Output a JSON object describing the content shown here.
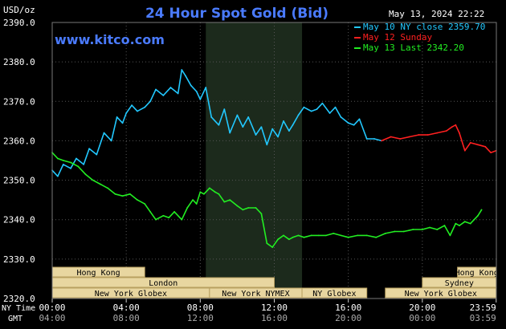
{
  "chart_data": {
    "type": "line",
    "title": "24 Hour Spot Gold (Bid)",
    "unit": "USD/oz",
    "date": "May 13, 2024 22:22",
    "brand": "www.kitco.com",
    "ylim": [
      2320,
      2390
    ],
    "yticks": [
      "2390.0",
      "2380.0",
      "2370.0",
      "2360.0",
      "2350.0",
      "2340.0",
      "2330.0",
      "2320.0"
    ],
    "row_labels": {
      "ny": "NY Time",
      "gmt": "GMT"
    },
    "ny_ticks": [
      "00:00",
      "04:00",
      "08:00",
      "12:00",
      "16:00",
      "20:00",
      "23:59"
    ],
    "gmt_ticks": [
      "04:00",
      "08:00",
      "12:00",
      "16:00",
      "20:00",
      "00:00",
      "03:59"
    ],
    "colors": {
      "background": "#000000",
      "grid": "#555555",
      "title": "#4a7bff",
      "brand": "#4a7bff",
      "session_shade": "#1c2a1c",
      "market_fill": "#e8d6a0",
      "market_border": "#b8a060"
    },
    "legend": [
      {
        "label": "May 10 NY close 2359.70",
        "color": "#22c8ff"
      },
      {
        "label": "May 12 Sunday",
        "color": "#ff2020"
      },
      {
        "label": "May 13 Last 2342.20",
        "color": "#22ee22"
      }
    ],
    "markets": [
      {
        "label": "Hong Kong",
        "start": 0.0,
        "end": 5.0,
        "row": 0
      },
      {
        "label": "Hong Kong",
        "start": 21.9,
        "end": 23.99,
        "row": 0
      },
      {
        "label": "London",
        "start": 0.0,
        "end": 12.0,
        "row": 1
      },
      {
        "label": "Sydney",
        "start": 20.0,
        "end": 23.99,
        "row": 1
      },
      {
        "label": "New York Globex",
        "start": 0.0,
        "end": 8.5,
        "row": 2
      },
      {
        "label": "New York NYMEX",
        "start": 8.5,
        "end": 13.5,
        "row": 2
      },
      {
        "label": "NY Globex",
        "start": 13.5,
        "end": 17.0,
        "row": 2
      },
      {
        "label": "New York Globex",
        "start": 18.0,
        "end": 23.99,
        "row": 2
      }
    ],
    "shade_range": [
      8.3,
      13.5
    ],
    "series": [
      {
        "name": "May 10 NY close 2359.70",
        "color": "#22c8ff",
        "x": [
          0.0,
          0.3,
          0.6,
          1.0,
          1.3,
          1.7,
          2.0,
          2.4,
          2.8,
          3.2,
          3.5,
          3.8,
          4.0,
          4.3,
          4.6,
          5.0,
          5.3,
          5.6,
          6.0,
          6.4,
          6.8,
          7.0,
          7.2,
          7.5,
          7.8,
          8.0,
          8.3,
          8.6,
          9.0,
          9.3,
          9.6,
          10.0,
          10.3,
          10.6,
          11.0,
          11.3,
          11.6,
          11.9,
          12.2,
          12.5,
          12.8,
          13.0,
          13.3,
          13.6,
          14.0,
          14.3,
          14.6,
          15.0,
          15.3,
          15.6,
          16.0,
          16.3,
          16.6,
          17.0,
          17.4,
          17.8
        ],
        "y": [
          2352.5,
          2351.0,
          2354.0,
          2353.0,
          2355.5,
          2354.0,
          2358.0,
          2356.5,
          2362.0,
          2360.0,
          2366.0,
          2364.5,
          2367.0,
          2369.0,
          2367.5,
          2368.5,
          2370.0,
          2373.0,
          2371.5,
          2373.5,
          2372.0,
          2378.0,
          2376.5,
          2374.0,
          2372.5,
          2370.5,
          2373.5,
          2366.0,
          2364.0,
          2368.0,
          2362.0,
          2366.5,
          2363.5,
          2366.0,
          2361.5,
          2363.5,
          2359.0,
          2363.0,
          2361.0,
          2365.0,
          2362.5,
          2364.0,
          2366.5,
          2368.5,
          2367.5,
          2368.0,
          2369.5,
          2367.0,
          2368.5,
          2366.0,
          2364.5,
          2364.0,
          2365.5,
          2360.5,
          2360.5,
          2360.0
        ]
      },
      {
        "name": "May 12 Sunday",
        "color": "#ff2020",
        "x": [
          17.8,
          18.3,
          18.8,
          19.3,
          19.8,
          20.3,
          20.8,
          21.3,
          21.6,
          21.8,
          22.0,
          22.3,
          22.6,
          23.0,
          23.4,
          23.7,
          23.99
        ],
        "y": [
          2360.0,
          2361.0,
          2360.5,
          2361.0,
          2361.5,
          2361.5,
          2362.0,
          2362.5,
          2363.5,
          2364.0,
          2362.0,
          2357.5,
          2359.5,
          2359.0,
          2358.5,
          2357.0,
          2357.5
        ]
      },
      {
        "name": "May 13 Last 2342.20",
        "color": "#22ee22",
        "x": [
          0.0,
          0.3,
          0.6,
          1.0,
          1.4,
          1.8,
          2.2,
          2.6,
          3.0,
          3.4,
          3.8,
          4.2,
          4.6,
          5.0,
          5.3,
          5.6,
          6.0,
          6.3,
          6.6,
          7.0,
          7.3,
          7.6,
          7.8,
          8.0,
          8.2,
          8.5,
          8.8,
          9.0,
          9.3,
          9.6,
          10.0,
          10.3,
          10.6,
          11.0,
          11.3,
          11.6,
          11.9,
          12.2,
          12.5,
          12.8,
          13.0,
          13.3,
          13.6,
          14.0,
          14.4,
          14.8,
          15.2,
          15.6,
          16.0,
          16.5,
          17.0,
          17.5,
          18.0,
          18.5,
          19.0,
          19.5,
          20.0,
          20.4,
          20.8,
          21.2,
          21.5,
          21.8,
          22.0,
          22.3,
          22.6,
          23.0,
          23.2
        ],
        "y": [
          2357.0,
          2355.5,
          2355.0,
          2354.5,
          2353.5,
          2351.5,
          2350.0,
          2349.0,
          2348.0,
          2346.5,
          2346.0,
          2346.5,
          2345.0,
          2344.0,
          2342.0,
          2340.0,
          2341.0,
          2340.5,
          2342.0,
          2340.0,
          2343.0,
          2345.0,
          2344.0,
          2347.0,
          2346.5,
          2348.0,
          2347.0,
          2346.5,
          2344.5,
          2345.0,
          2343.5,
          2342.5,
          2343.0,
          2343.0,
          2341.5,
          2334.0,
          2333.0,
          2335.0,
          2336.0,
          2335.0,
          2335.5,
          2336.0,
          2335.5,
          2336.0,
          2336.0,
          2336.0,
          2336.5,
          2336.0,
          2335.5,
          2336.0,
          2336.0,
          2335.5,
          2336.5,
          2337.0,
          2337.0,
          2337.5,
          2337.5,
          2338.0,
          2337.5,
          2338.5,
          2336.0,
          2339.0,
          2338.5,
          2339.5,
          2339.0,
          2341.0,
          2342.5
        ]
      }
    ]
  }
}
